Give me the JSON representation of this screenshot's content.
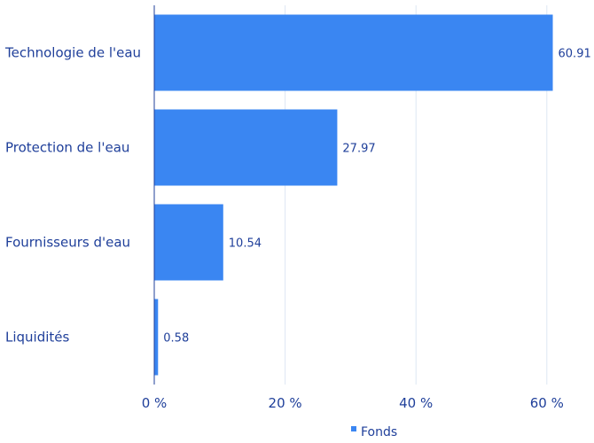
{
  "chart_data": {
    "type": "bar",
    "orientation": "horizontal",
    "categories": [
      "Technologie de l'eau",
      "Protection de l'eau",
      "Fournisseurs d'eau",
      "Liquidités"
    ],
    "series": [
      {
        "name": "Fonds",
        "values": [
          60.91,
          27.97,
          10.54,
          0.58
        ]
      }
    ],
    "data_labels": [
      "60.91",
      "27.97",
      "10.54",
      "0.58"
    ],
    "x_ticks": [
      "0 %",
      "20 %",
      "40 %",
      "60 %"
    ],
    "x_tick_values": [
      0,
      20,
      40,
      60
    ],
    "xlim": [
      0,
      60
    ],
    "grid": true,
    "legend": "bottom-center",
    "colors": {
      "bar": "#3a86f2",
      "grid": "#dde7f3",
      "text": "#1f3f9a",
      "axis": "#1f3f9a"
    }
  }
}
